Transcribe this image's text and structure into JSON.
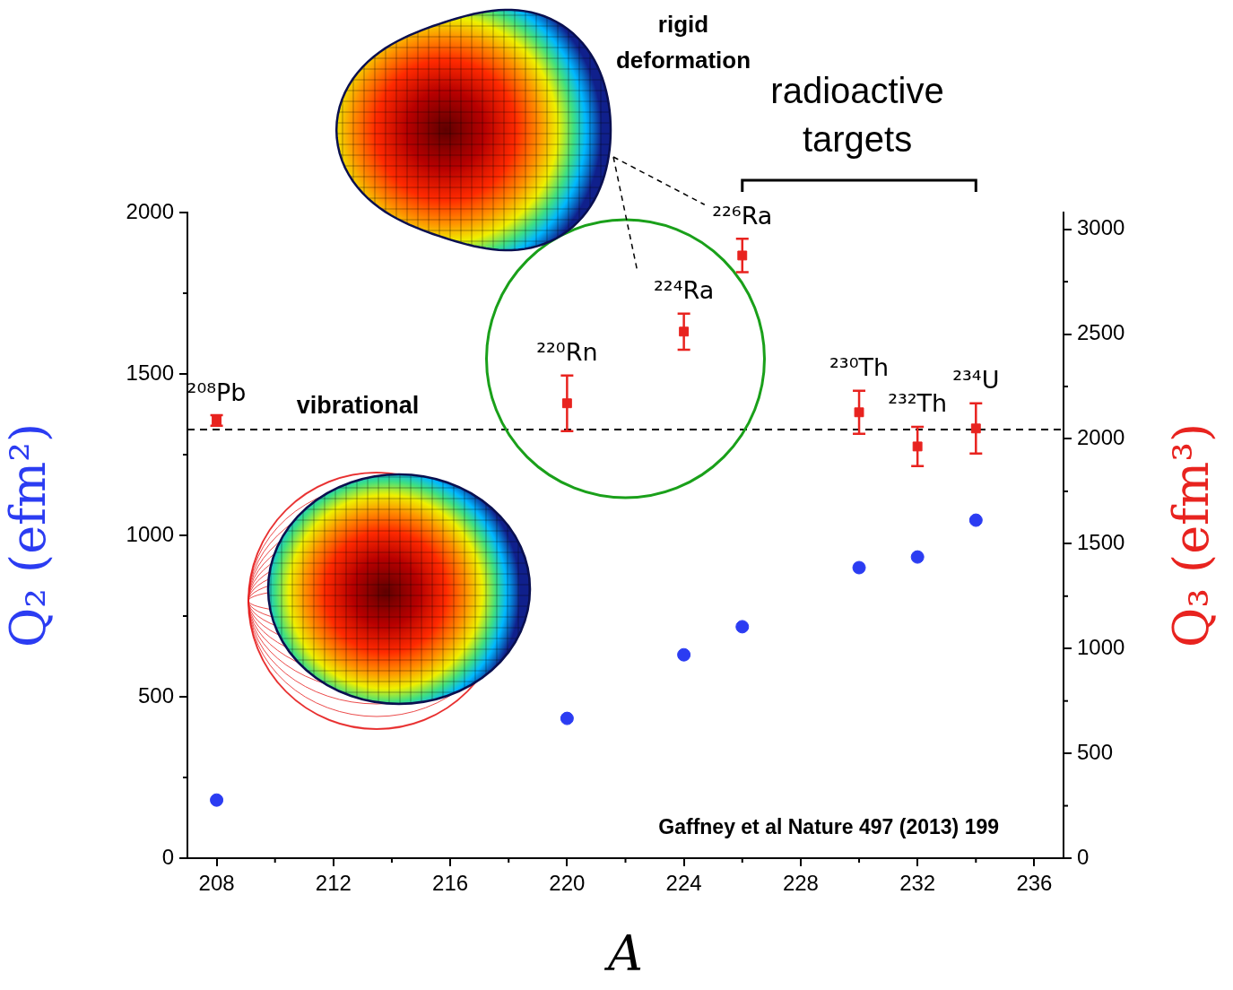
{
  "chart_data": {
    "type": "scatter",
    "xlabel": "A",
    "ylabel": "Q₂ (efm²)",
    "y2label": "Q₃ (efm³)",
    "x": [
      208,
      220,
      224,
      226,
      230,
      232,
      234
    ],
    "labels": [
      "²⁰⁸Pb",
      "²²⁰Rn",
      "²²⁴Ra",
      "²²⁶Ra",
      "²³⁰Th",
      "²³²Th",
      "²³⁴U"
    ],
    "series": [
      {
        "color": "#2b3cf2",
        "marker": "circle",
        "values": [
          180,
          433,
          630,
          717,
          900,
          933,
          1047
        ]
      },
      {
        "color": "#e8231f",
        "marker": "square",
        "axis": "y2",
        "values": [
          2088,
          2170,
          2512,
          2875,
          2127,
          1964,
          2050
        ],
        "errors": [
          25,
          133,
          86,
          80,
          103,
          94,
          120
        ]
      }
    ],
    "xlim": [
      207,
      237
    ],
    "xticks": [
      208,
      212,
      216,
      220,
      224,
      228,
      232,
      236
    ],
    "ylim": [
      0,
      2000
    ],
    "yticks": [
      0,
      500,
      1000,
      1500,
      2000
    ],
    "y2lim": [
      0,
      3080
    ],
    "y2ticks": [
      0,
      500,
      1000,
      1500,
      2000,
      2500,
      3000
    ],
    "grid": false,
    "annotations": {
      "shape_label": "rigid deformation",
      "bracket_label": "radioactive targets",
      "reference": {
        "value": 2045,
        "axis": "y2",
        "label": "vibrational"
      },
      "source": "Gaffney et al Nature 497 (2013) 199"
    }
  }
}
